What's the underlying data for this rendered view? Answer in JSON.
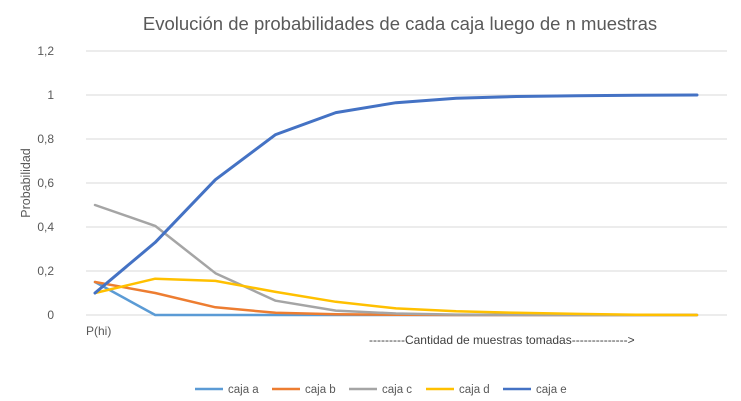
{
  "chart_data": {
    "type": "line",
    "title": "Evolución de probabilidades de cada caja luego de n muestras",
    "ylabel": "Probabilidad",
    "xlabel": "",
    "ylim": [
      0,
      1.2
    ],
    "yticks": [
      "0",
      "0,2",
      "0,4",
      "0,6",
      "0,8",
      "1",
      "1,2"
    ],
    "yticks_values": [
      0,
      0.2,
      0.4,
      0.6,
      0.8,
      1.0,
      1.2
    ],
    "grid": true,
    "legend_position": "bottom",
    "x_start_label": "P(hi)",
    "annotation": "---------Cantidad de muestras tomadas-------------->",
    "num_points": 11,
    "series": [
      {
        "name": "caja a",
        "color": "#5B9BD5",
        "values": [
          0.15,
          0.0,
          0.0,
          0.0,
          0.0,
          0.0,
          0.0,
          0.0,
          0.0,
          0.0,
          0.0
        ]
      },
      {
        "name": "caja b",
        "color": "#ED7D31",
        "values": [
          0.15,
          0.1,
          0.035,
          0.01,
          0.003,
          0.001,
          0.0,
          0.0,
          0.0,
          0.0,
          0.0
        ]
      },
      {
        "name": "caja c",
        "color": "#A5A5A5",
        "values": [
          0.5,
          0.405,
          0.19,
          0.065,
          0.02,
          0.007,
          0.002,
          0.001,
          0.0,
          0.0,
          0.0
        ]
      },
      {
        "name": "caja d",
        "color": "#FFC000",
        "values": [
          0.1,
          0.165,
          0.155,
          0.105,
          0.06,
          0.03,
          0.017,
          0.01,
          0.005,
          0.001,
          0.0
        ]
      },
      {
        "name": "caja e",
        "color": "#4472C4",
        "values": [
          0.1,
          0.33,
          0.615,
          0.82,
          0.92,
          0.965,
          0.985,
          0.993,
          0.997,
          0.999,
          1.0
        ]
      }
    ]
  }
}
